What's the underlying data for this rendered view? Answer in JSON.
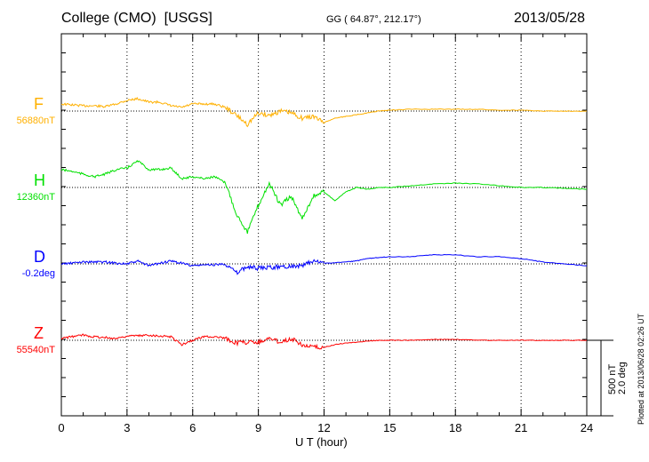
{
  "chart_data": {
    "type": "line",
    "title": "College (CMO)  [USGS]",
    "coords": "GG ( 64.87°, 212.17°)",
    "date": "2013/05/28",
    "xlabel": "U T (hour)",
    "xlim": [
      0,
      24
    ],
    "xticks": [
      "0",
      "3",
      "6",
      "9",
      "12",
      "15",
      "18",
      "21",
      "24"
    ],
    "scale": {
      "nT": "500 nT",
      "deg": "2.0 deg"
    },
    "plotted": "Plotted at 2013/06/28 02:26 UT",
    "x": [
      0,
      0.5,
      1,
      1.5,
      2,
      2.5,
      3,
      3.5,
      4,
      4.5,
      5,
      5.5,
      6,
      6.5,
      7,
      7.5,
      8,
      8.5,
      9,
      9.5,
      10,
      10.5,
      11,
      11.5,
      12,
      12.5,
      13,
      13.5,
      14,
      14.5,
      15,
      16,
      17,
      18,
      19,
      20,
      21,
      22,
      23,
      24
    ],
    "series": [
      {
        "name": "F",
        "baseline": "56880nT",
        "unit": "nT",
        "color": "#ffb000",
        "values": [
          47,
          41,
          35,
          35,
          29,
          47,
          71,
          82,
          59,
          59,
          35,
          24,
          47,
          47,
          47,
          24,
          -29,
          -88,
          -12,
          -29,
          0,
          -12,
          -47,
          -35,
          -76,
          -47,
          -35,
          -24,
          -12,
          0,
          6,
          12,
          12,
          12,
          12,
          6,
          6,
          0,
          0,
          0
        ]
      },
      {
        "name": "H",
        "baseline": "12360nT",
        "unit": "nT",
        "color": "#00e000",
        "values": [
          118,
          106,
          88,
          71,
          88,
          118,
          129,
          176,
          118,
          118,
          129,
          59,
          71,
          59,
          71,
          29,
          -176,
          -294,
          -118,
          29,
          -118,
          -59,
          -206,
          -59,
          -29,
          -88,
          -29,
          0,
          -12,
          0,
          0,
          12,
          24,
          29,
          24,
          12,
          0,
          0,
          -6,
          -12
        ]
      },
      {
        "name": "D",
        "baseline": "-0.2deg",
        "unit": "deg",
        "color": "#0000ff",
        "values": [
          0,
          0.02,
          0.05,
          0.05,
          0.05,
          0.02,
          0,
          0.07,
          -0.05,
          0.02,
          0.07,
          0.02,
          -0.05,
          -0.03,
          -0.02,
          0,
          -0.24,
          -0.07,
          -0.12,
          -0.1,
          -0.07,
          -0.06,
          -0.05,
          0.07,
          0.02,
          0.03,
          0.05,
          0.08,
          0.14,
          0.17,
          0.19,
          0.19,
          0.24,
          0.24,
          0.19,
          0.19,
          0.14,
          0.05,
          0,
          -0.05
        ]
      },
      {
        "name": "Z",
        "baseline": "55540nT",
        "unit": "nT",
        "color": "#ff0000",
        "values": [
          12,
          24,
          35,
          24,
          18,
          12,
          29,
          29,
          35,
          29,
          24,
          -29,
          0,
          24,
          24,
          12,
          -18,
          -12,
          -12,
          12,
          -12,
          12,
          -29,
          -47,
          -47,
          -29,
          -18,
          -12,
          -6,
          0,
          0,
          0,
          6,
          6,
          0,
          0,
          0,
          0,
          0,
          0
        ]
      }
    ]
  }
}
